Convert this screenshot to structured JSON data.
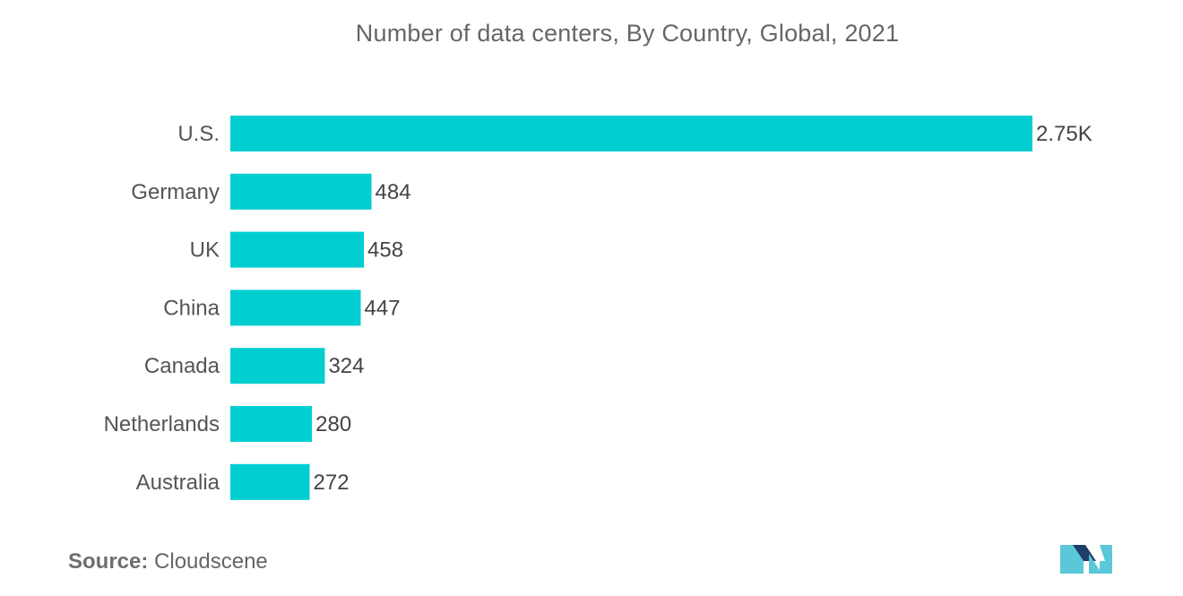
{
  "chart_data": {
    "type": "bar",
    "orientation": "horizontal",
    "title": "Number of data centers, By Country, Global, 2021",
    "categories": [
      "U.S.",
      "Germany",
      "UK",
      "China",
      "Canada",
      "Netherlands",
      "Australia"
    ],
    "values": [
      2750,
      484,
      458,
      447,
      324,
      280,
      272
    ],
    "value_labels": [
      "2.75K",
      "484",
      "458",
      "447",
      "324",
      "280",
      "272"
    ],
    "xlabel": "",
    "ylabel": "",
    "xlim": [
      0,
      2750
    ],
    "grid": false,
    "legend": "none",
    "bar_color": "#00ced1"
  },
  "source": {
    "label": "Source:",
    "value": "Cloudscene"
  },
  "logo": {
    "icon": "mordor-intelligence-logo-icon",
    "color_light": "#5ac8d8",
    "color_dark": "#1f3d6b"
  }
}
